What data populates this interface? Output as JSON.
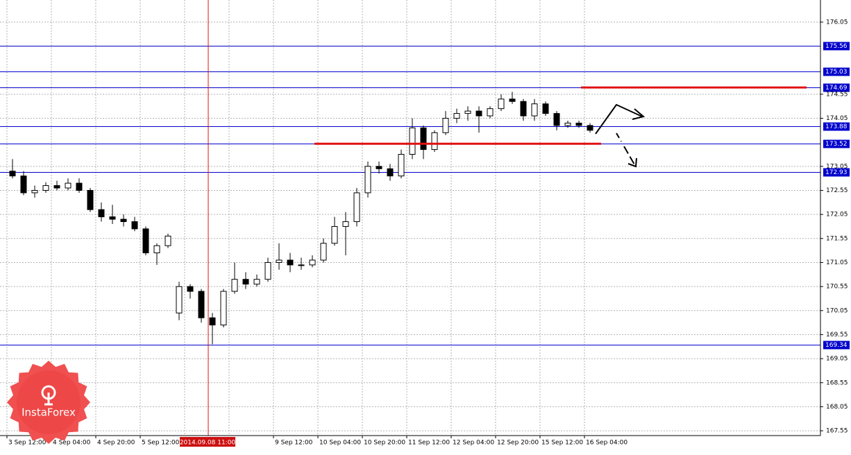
{
  "chart_data": {
    "type": "candlestick",
    "categories": [
      "3 Sep 12:00",
      null,
      null,
      null,
      "4 Sep 04:00",
      null,
      null,
      null,
      "4 Sep 20:00",
      null,
      null,
      null,
      "5 Sep 12:00",
      null,
      null,
      null,
      null,
      null,
      null,
      null,
      null,
      null,
      null,
      null,
      "9 Sep 12:00",
      null,
      null,
      null,
      "10 Sep 04:00",
      null,
      null,
      null,
      "10 Sep 20:00",
      null,
      null,
      null,
      "11 Sep 12:00",
      null,
      null,
      null,
      "12 Sep 04:00",
      null,
      null,
      null,
      "12 Sep 20:00",
      null,
      null,
      null,
      "15 Sep 12:00",
      null,
      null,
      null,
      "16 Sep 04:00"
    ],
    "open": [
      172.95,
      172.85,
      172.5,
      172.55,
      172.65,
      172.6,
      172.7,
      172.55,
      172.15,
      172.0,
      171.95,
      171.9,
      171.75,
      171.25,
      171.4,
      170.0,
      170.55,
      170.45,
      169.9,
      169.75,
      170.45,
      170.7,
      170.6,
      170.7,
      171.05,
      171.1,
      171.0,
      171.0,
      171.1,
      171.45,
      171.8,
      171.9,
      172.5,
      173.05,
      173.0,
      172.85,
      173.3,
      173.85,
      173.4,
      173.75,
      174.05,
      174.15,
      174.2,
      174.1,
      174.25,
      174.45,
      174.4,
      174.1,
      174.35,
      174.15,
      173.9,
      173.95,
      173.9
    ],
    "high": [
      173.2,
      172.95,
      172.65,
      172.72,
      172.75,
      172.8,
      172.8,
      172.6,
      172.3,
      172.25,
      172.05,
      172.0,
      171.8,
      171.45,
      171.65,
      170.65,
      170.6,
      170.5,
      170.0,
      170.5,
      171.05,
      170.85,
      170.8,
      171.15,
      171.45,
      171.25,
      171.15,
      171.2,
      171.55,
      172.0,
      172.1,
      172.6,
      173.15,
      173.15,
      173.1,
      173.4,
      174.05,
      173.9,
      173.8,
      174.2,
      174.25,
      174.3,
      174.3,
      174.3,
      174.55,
      174.6,
      174.45,
      174.45,
      174.4,
      174.2,
      174.0,
      174.0,
      173.95
    ],
    "low": [
      172.8,
      172.45,
      172.4,
      172.5,
      172.55,
      172.55,
      172.5,
      172.1,
      171.9,
      171.85,
      171.8,
      171.7,
      171.2,
      171.0,
      171.35,
      169.85,
      170.3,
      169.8,
      169.35,
      169.7,
      170.4,
      170.5,
      170.55,
      170.65,
      170.9,
      170.85,
      170.9,
      170.95,
      171.05,
      171.4,
      171.2,
      171.8,
      172.4,
      172.9,
      172.75,
      172.8,
      173.2,
      173.2,
      173.35,
      173.7,
      173.95,
      174.0,
      173.75,
      174.05,
      174.2,
      174.35,
      174.0,
      174.0,
      174.1,
      173.8,
      173.85,
      173.85,
      173.75
    ],
    "close": [
      172.85,
      172.5,
      172.55,
      172.65,
      172.6,
      172.7,
      172.55,
      172.15,
      172.0,
      171.95,
      171.9,
      171.75,
      171.25,
      171.4,
      171.6,
      170.55,
      170.45,
      169.9,
      169.75,
      170.45,
      170.7,
      170.6,
      170.7,
      171.05,
      171.1,
      171.0,
      171.0,
      171.1,
      171.45,
      171.8,
      171.9,
      172.5,
      173.05,
      173.0,
      172.85,
      173.3,
      173.85,
      173.4,
      173.75,
      174.05,
      174.15,
      174.2,
      174.1,
      174.25,
      174.45,
      174.4,
      174.1,
      174.35,
      174.15,
      173.9,
      173.95,
      173.9,
      173.8
    ],
    "ylim": [
      167.45,
      176.51
    ],
    "yticks": [
      176.05,
      174.55,
      174.05,
      173.05,
      172.55,
      172.05,
      171.55,
      171.05,
      170.55,
      170.05,
      169.55,
      169.05,
      168.55,
      168.05,
      167.55
    ],
    "grid": true,
    "levels": [
      175.56,
      175.03,
      174.69,
      173.88,
      173.52,
      172.93,
      169.34
    ],
    "level_color": "#0000cc",
    "marked_levels": [
      174.69,
      173.52
    ],
    "marked_color": "#e01010",
    "crosshair_label": "2014.09.08 11:00",
    "logo": "InstaForex"
  }
}
